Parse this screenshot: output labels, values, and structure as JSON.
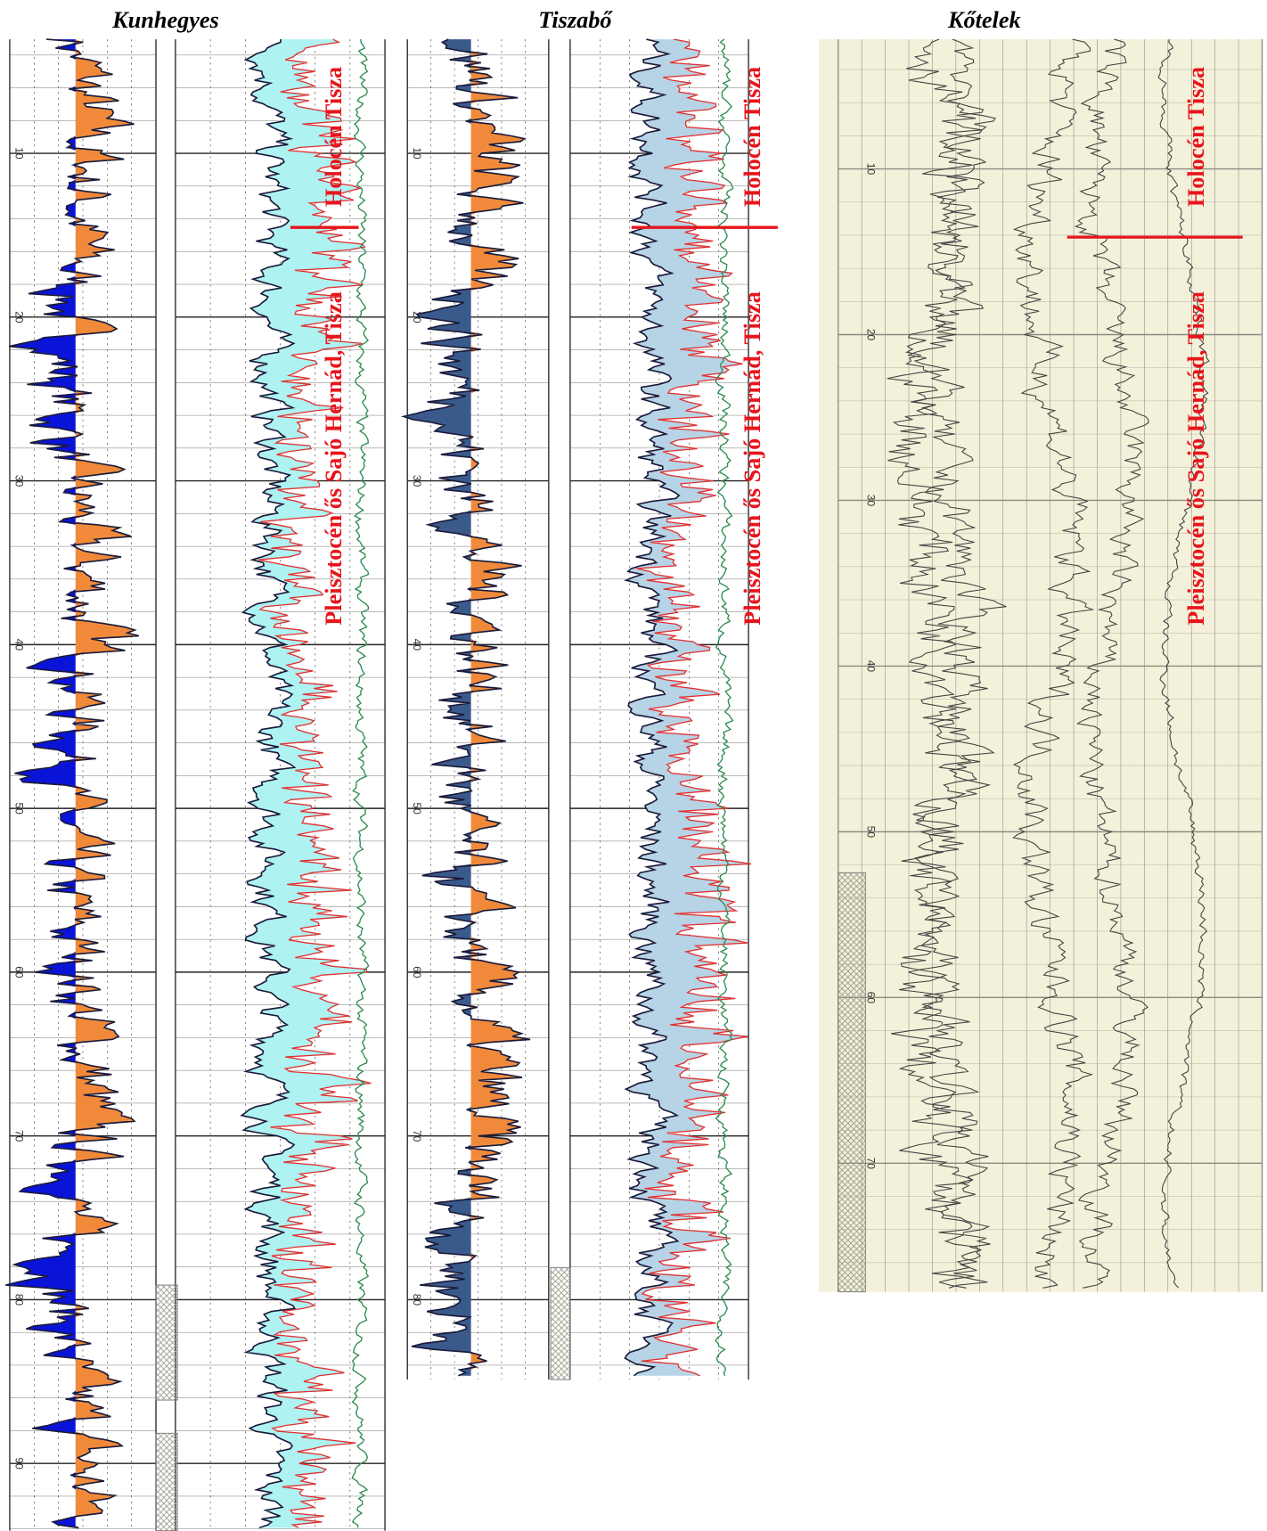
{
  "panels": [
    {
      "title": "Kunhegyes",
      "depth_labels": [
        "10",
        "20",
        "30",
        "40",
        "50",
        "60",
        "70",
        "80",
        "90"
      ],
      "labels": [
        "Holocén Tisza",
        "Pleisztocén ős Sajó Hernád, Tisza"
      ]
    },
    {
      "title": "Tiszabő",
      "depth_labels": [
        "10",
        "20",
        "30",
        "40",
        "50",
        "60",
        "70",
        "80"
      ],
      "labels": [
        "Holocén Tisza",
        "Pleisztocén ős Sajó Hernád, Tisza"
      ]
    },
    {
      "title": "Kőtelek",
      "depth_labels": [
        "10",
        "20",
        "30",
        "40",
        "50",
        "60",
        "70"
      ],
      "labels": [
        "Holocén Tisza",
        "Pleisztocén ős Sajó Hernád, Tisza"
      ]
    }
  ]
}
